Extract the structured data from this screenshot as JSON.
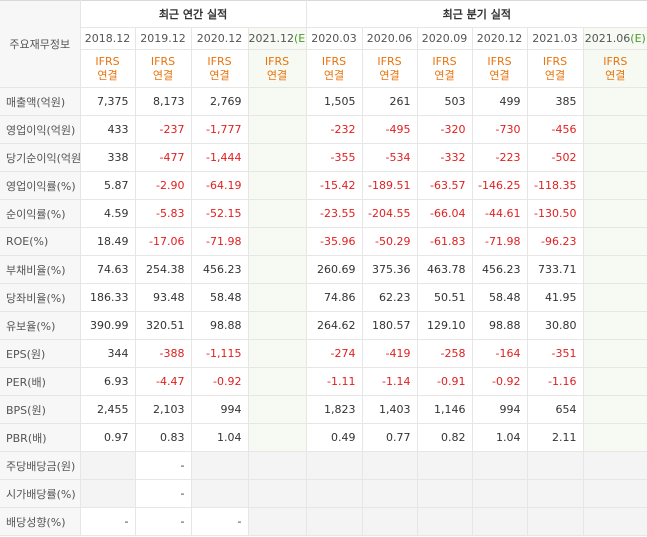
{
  "header": {
    "label": "주요재무정보",
    "annual_title": "최근 연간 실적",
    "quarterly_title": "최근 분기 실적"
  },
  "annual_columns": [
    {
      "period": "2018.12",
      "standard": "IFRS",
      "basis": "연결"
    },
    {
      "period": "2019.12",
      "standard": "IFRS",
      "basis": "연결"
    },
    {
      "period": "2020.12",
      "standard": "IFRS",
      "basis": "연결"
    },
    {
      "period": "2021.12",
      "mark": "(E)",
      "standard": "IFRS",
      "basis": "연결"
    }
  ],
  "quarterly_columns": [
    {
      "period": "2020.03",
      "standard": "IFRS",
      "basis": "연결"
    },
    {
      "period": "2020.06",
      "standard": "IFRS",
      "basis": "연결"
    },
    {
      "period": "2020.09",
      "standard": "IFRS",
      "basis": "연결"
    },
    {
      "period": "2020.12",
      "standard": "IFRS",
      "basis": "연결"
    },
    {
      "period": "2021.03",
      "standard": "IFRS",
      "basis": "연결"
    },
    {
      "period": "2021.06",
      "mark": "(E)",
      "standard": "IFRS",
      "basis": "연결"
    }
  ],
  "groups": [
    [
      {
        "label": "매출액(억원)",
        "annual": [
          "7,375",
          "8,173",
          "2,769",
          null
        ],
        "quarterly": [
          "1,505",
          "261",
          "503",
          "499",
          "385",
          null
        ]
      },
      {
        "label": "영업이익(억원)",
        "annual": [
          "433",
          "-237",
          "-1,777",
          null
        ],
        "quarterly": [
          "-232",
          "-495",
          "-320",
          "-730",
          "-456",
          null
        ]
      },
      {
        "label": "당기순이익(억원)",
        "annual": [
          "338",
          "-477",
          "-1,444",
          null
        ],
        "quarterly": [
          "-355",
          "-534",
          "-332",
          "-223",
          "-502",
          null
        ]
      }
    ],
    [
      {
        "label": "영업이익률(%)",
        "annual": [
          "5.87",
          "-2.90",
          "-64.19",
          null
        ],
        "quarterly": [
          "-15.42",
          "-189.51",
          "-63.57",
          "-146.25",
          "-118.35",
          null
        ]
      },
      {
        "label": "순이익률(%)",
        "annual": [
          "4.59",
          "-5.83",
          "-52.15",
          null
        ],
        "quarterly": [
          "-23.55",
          "-204.55",
          "-66.04",
          "-44.61",
          "-130.50",
          null
        ]
      },
      {
        "label": "ROE(%)",
        "annual": [
          "18.49",
          "-17.06",
          "-71.98",
          null
        ],
        "quarterly": [
          "-35.96",
          "-50.29",
          "-61.83",
          "-71.98",
          "-96.23",
          null
        ]
      }
    ],
    [
      {
        "label": "부채비율(%)",
        "annual": [
          "74.63",
          "254.38",
          "456.23",
          null
        ],
        "quarterly": [
          "260.69",
          "375.36",
          "463.78",
          "456.23",
          "733.71",
          null
        ]
      },
      {
        "label": "당좌비율(%)",
        "annual": [
          "186.33",
          "93.48",
          "58.48",
          null
        ],
        "quarterly": [
          "74.86",
          "62.23",
          "50.51",
          "58.48",
          "41.95",
          null
        ]
      },
      {
        "label": "유보율(%)",
        "annual": [
          "390.99",
          "320.51",
          "98.88",
          null
        ],
        "quarterly": [
          "264.62",
          "180.57",
          "129.10",
          "98.88",
          "30.80",
          null
        ]
      }
    ],
    [
      {
        "label": "EPS(원)",
        "annual": [
          "344",
          "-388",
          "-1,115",
          null
        ],
        "quarterly": [
          "-274",
          "-419",
          "-258",
          "-164",
          "-351",
          null
        ]
      },
      {
        "label": "PER(배)",
        "annual": [
          "6.93",
          "-4.47",
          "-0.92",
          null
        ],
        "quarterly": [
          "-1.11",
          "-1.14",
          "-0.91",
          "-0.92",
          "-1.16",
          null
        ]
      },
      {
        "label": "BPS(원)",
        "annual": [
          "2,455",
          "2,103",
          "994",
          null
        ],
        "quarterly": [
          "1,823",
          "1,403",
          "1,146",
          "994",
          "654",
          null
        ]
      },
      {
        "label": "PBR(배)",
        "annual": [
          "0.97",
          "0.83",
          "1.04",
          null
        ],
        "quarterly": [
          "0.49",
          "0.77",
          "0.82",
          "1.04",
          "2.11",
          null
        ]
      }
    ],
    [
      {
        "label": "주당배당금(원)",
        "annual": [
          null,
          "-",
          null,
          null
        ],
        "quarterly": [
          null,
          null,
          null,
          null,
          null,
          null
        ]
      },
      {
        "label": "시가배당률(%)",
        "annual": [
          null,
          "-",
          null,
          null
        ],
        "quarterly": [
          null,
          null,
          null,
          null,
          null,
          null
        ]
      },
      {
        "label": "배당성향(%)",
        "annual": [
          "-",
          "-",
          "-",
          null
        ],
        "quarterly": [
          null,
          null,
          null,
          null,
          null,
          null
        ]
      }
    ]
  ]
}
